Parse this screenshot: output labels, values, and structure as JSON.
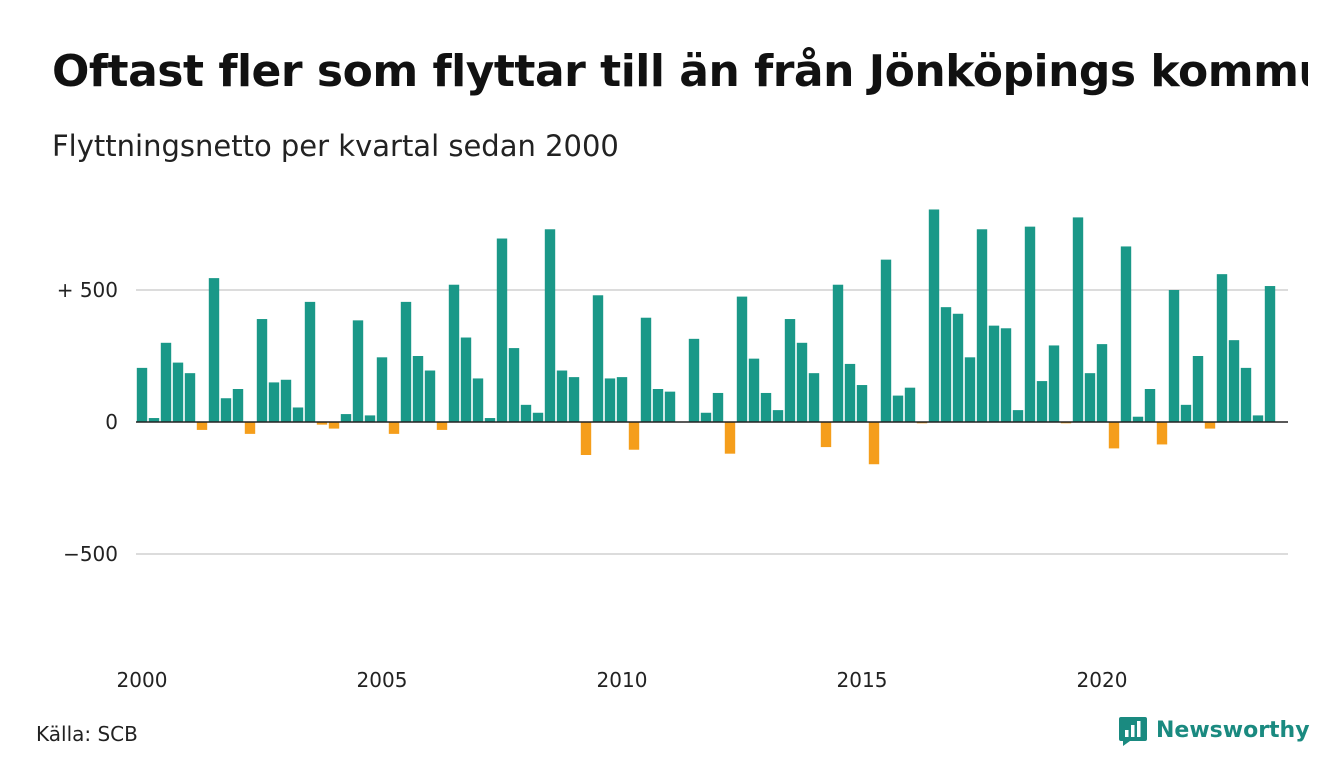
{
  "header": {
    "title": "Oftast fler som flyttar till än från Jönköpings kommun",
    "subtitle": "Flyttningsnetto per kvartal sedan 2000"
  },
  "footer": {
    "source": "Källa: SCB",
    "brand": "Newsworthy",
    "brand_icon": "newsworthy-logo-icon"
  },
  "colors": {
    "positive": "#1a9888",
    "negative": "#f59e1b",
    "grid": "#dcdcdc",
    "zero_line": "#222222",
    "brand": "#1a8a80"
  },
  "chart_data": {
    "type": "bar",
    "x": [
      "2000 Q1",
      "2000 Q2",
      "2000 Q3",
      "2000 Q4",
      "2001 Q1",
      "2001 Q2",
      "2001 Q3",
      "2001 Q4",
      "2002 Q1",
      "2002 Q2",
      "2002 Q3",
      "2002 Q4",
      "2003 Q1",
      "2003 Q2",
      "2003 Q3",
      "2003 Q4",
      "2004 Q1",
      "2004 Q2",
      "2004 Q3",
      "2004 Q4",
      "2005 Q1",
      "2005 Q2",
      "2005 Q3",
      "2005 Q4",
      "2006 Q1",
      "2006 Q2",
      "2006 Q3",
      "2006 Q4",
      "2007 Q1",
      "2007 Q2",
      "2007 Q3",
      "2007 Q4",
      "2008 Q1",
      "2008 Q2",
      "2008 Q3",
      "2008 Q4",
      "2009 Q1",
      "2009 Q2",
      "2009 Q3",
      "2009 Q4",
      "2010 Q1",
      "2010 Q2",
      "2010 Q3",
      "2010 Q4",
      "2011 Q1",
      "2011 Q2",
      "2011 Q3",
      "2011 Q4",
      "2012 Q1",
      "2012 Q2",
      "2012 Q3",
      "2012 Q4",
      "2013 Q1",
      "2013 Q2",
      "2013 Q3",
      "2013 Q4",
      "2014 Q1",
      "2014 Q2",
      "2014 Q3",
      "2014 Q4",
      "2015 Q1",
      "2015 Q2",
      "2015 Q3",
      "2015 Q4",
      "2016 Q1",
      "2016 Q2",
      "2016 Q3",
      "2016 Q4",
      "2017 Q1",
      "2017 Q2",
      "2017 Q3",
      "2017 Q4",
      "2018 Q1",
      "2018 Q2",
      "2018 Q3",
      "2018 Q4",
      "2019 Q1",
      "2019 Q2",
      "2019 Q3",
      "2019 Q4",
      "2020 Q1",
      "2020 Q2",
      "2020 Q3",
      "2020 Q4",
      "2021 Q1",
      "2021 Q2",
      "2021 Q3",
      "2021 Q4",
      "2022 Q1",
      "2022 Q2",
      "2022 Q3",
      "2022 Q4",
      "2023 Q1",
      "2023 Q2",
      "2023 Q3",
      "2023 Q4"
    ],
    "values": [
      205,
      15,
      300,
      225,
      185,
      -30,
      545,
      90,
      125,
      -45,
      390,
      150,
      160,
      55,
      455,
      -10,
      -25,
      30,
      385,
      25,
      245,
      -45,
      455,
      250,
      195,
      -30,
      520,
      320,
      165,
      15,
      695,
      280,
      65,
      35,
      730,
      195,
      170,
      -125,
      480,
      165,
      170,
      -105,
      395,
      125,
      115,
      0,
      315,
      35,
      110,
      -120,
      475,
      240,
      110,
      45,
      390,
      300,
      185,
      -95,
      520,
      220,
      140,
      -160,
      615,
      100,
      130,
      -5,
      805,
      435,
      410,
      245,
      730,
      365,
      355,
      45,
      740,
      155,
      290,
      -5,
      775,
      185,
      295,
      -100,
      665,
      20,
      125,
      -85,
      500,
      65,
      250,
      -25,
      560,
      310,
      205,
      25,
      515,
      0
    ],
    "x_ticks": [
      "2000",
      "2005",
      "2010",
      "2015",
      "2020"
    ],
    "y_ticks": [
      {
        "value": 500,
        "label": "+ 500"
      },
      {
        "value": 0,
        "label": "0"
      },
      {
        "value": -500,
        "label": "−500"
      }
    ],
    "ylim": [
      -800,
      820
    ],
    "grid": true,
    "legend": "none"
  }
}
